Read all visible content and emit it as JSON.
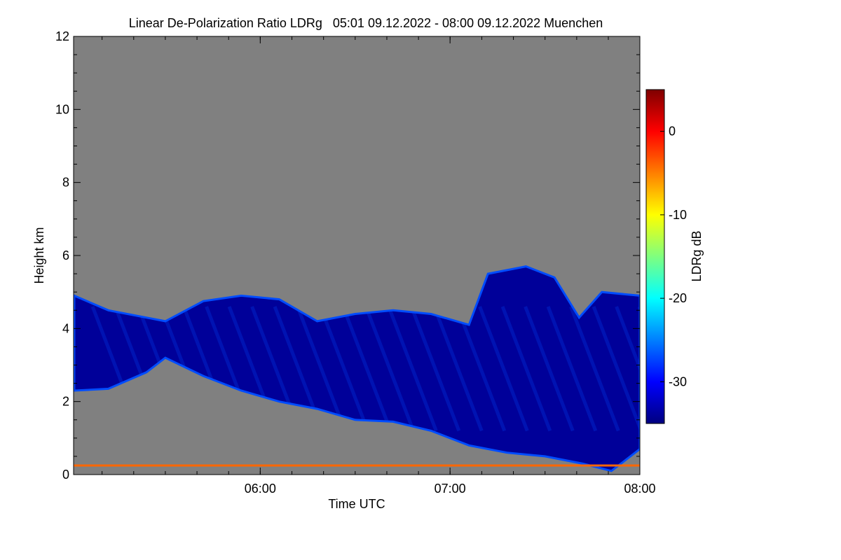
{
  "chart_data": {
    "type": "heatmap",
    "title": "Linear De-Polarization Ratio LDRg   05:01 09.12.2022 - 08:00 09.12.2022 Muenchen",
    "xlabel": "Time UTC",
    "ylabel": "Height km",
    "x_range_hours": [
      5.0167,
      8.0
    ],
    "x_ticks": [
      {
        "value": 6.0,
        "label": "06:00"
      },
      {
        "value": 7.0,
        "label": "07:00"
      },
      {
        "value": 8.0,
        "label": "08:00"
      }
    ],
    "x_minor_step_hours": 0.1667,
    "ylim": [
      0,
      12
    ],
    "y_ticks": [
      {
        "value": 0,
        "label": "0"
      },
      {
        "value": 2,
        "label": "2"
      },
      {
        "value": 4,
        "label": "4"
      },
      {
        "value": 6,
        "label": "6"
      },
      {
        "value": 8,
        "label": "8"
      },
      {
        "value": 10,
        "label": "10"
      },
      {
        "value": 12,
        "label": "12"
      }
    ],
    "no_data_color": "#808080",
    "colorbar": {
      "label": "LDRg dB",
      "range": [
        -35,
        5
      ],
      "ticks": [
        {
          "value": 0,
          "label": "0"
        },
        {
          "value": -10,
          "label": "-10"
        },
        {
          "value": -20,
          "label": "-20"
        },
        {
          "value": -30,
          "label": "-30"
        }
      ],
      "colormap": [
        "#00007f",
        "#0000ff",
        "#007fff",
        "#00ffff",
        "#7fff7f",
        "#ffff00",
        "#ff7f00",
        "#ff0000",
        "#7f0000"
      ]
    },
    "cloud_top_km": [
      {
        "t": 5.02,
        "h": 4.9
      },
      {
        "t": 5.2,
        "h": 4.5
      },
      {
        "t": 5.4,
        "h": 4.3
      },
      {
        "t": 5.5,
        "h": 4.2
      },
      {
        "t": 5.7,
        "h": 4.75
      },
      {
        "t": 5.9,
        "h": 4.9
      },
      {
        "t": 6.1,
        "h": 4.8
      },
      {
        "t": 6.3,
        "h": 4.2
      },
      {
        "t": 6.5,
        "h": 4.4
      },
      {
        "t": 6.7,
        "h": 4.5
      },
      {
        "t": 6.9,
        "h": 4.4
      },
      {
        "t": 7.1,
        "h": 4.1
      },
      {
        "t": 7.2,
        "h": 5.5
      },
      {
        "t": 7.4,
        "h": 5.7
      },
      {
        "t": 7.55,
        "h": 5.4
      },
      {
        "t": 7.68,
        "h": 4.3
      },
      {
        "t": 7.8,
        "h": 5.0
      },
      {
        "t": 8.0,
        "h": 4.9
      }
    ],
    "cloud_base_km": [
      {
        "t": 5.02,
        "h": 2.3
      },
      {
        "t": 5.2,
        "h": 2.35
      },
      {
        "t": 5.4,
        "h": 2.8
      },
      {
        "t": 5.5,
        "h": 3.2
      },
      {
        "t": 5.7,
        "h": 2.7
      },
      {
        "t": 5.9,
        "h": 2.3
      },
      {
        "t": 6.1,
        "h": 2.0
      },
      {
        "t": 6.3,
        "h": 1.8
      },
      {
        "t": 6.5,
        "h": 1.5
      },
      {
        "t": 6.7,
        "h": 1.45
      },
      {
        "t": 6.9,
        "h": 1.2
      },
      {
        "t": 7.1,
        "h": 0.8
      },
      {
        "t": 7.3,
        "h": 0.6
      },
      {
        "t": 7.5,
        "h": 0.5
      },
      {
        "t": 7.7,
        "h": 0.3
      },
      {
        "t": 7.85,
        "h": 0.1
      },
      {
        "t": 8.0,
        "h": 0.7
      }
    ],
    "ldr_core_db": -34,
    "ldr_edge_db": -27,
    "near_surface_layer": {
      "height_km": 0.25,
      "ldr_db": -4
    }
  }
}
